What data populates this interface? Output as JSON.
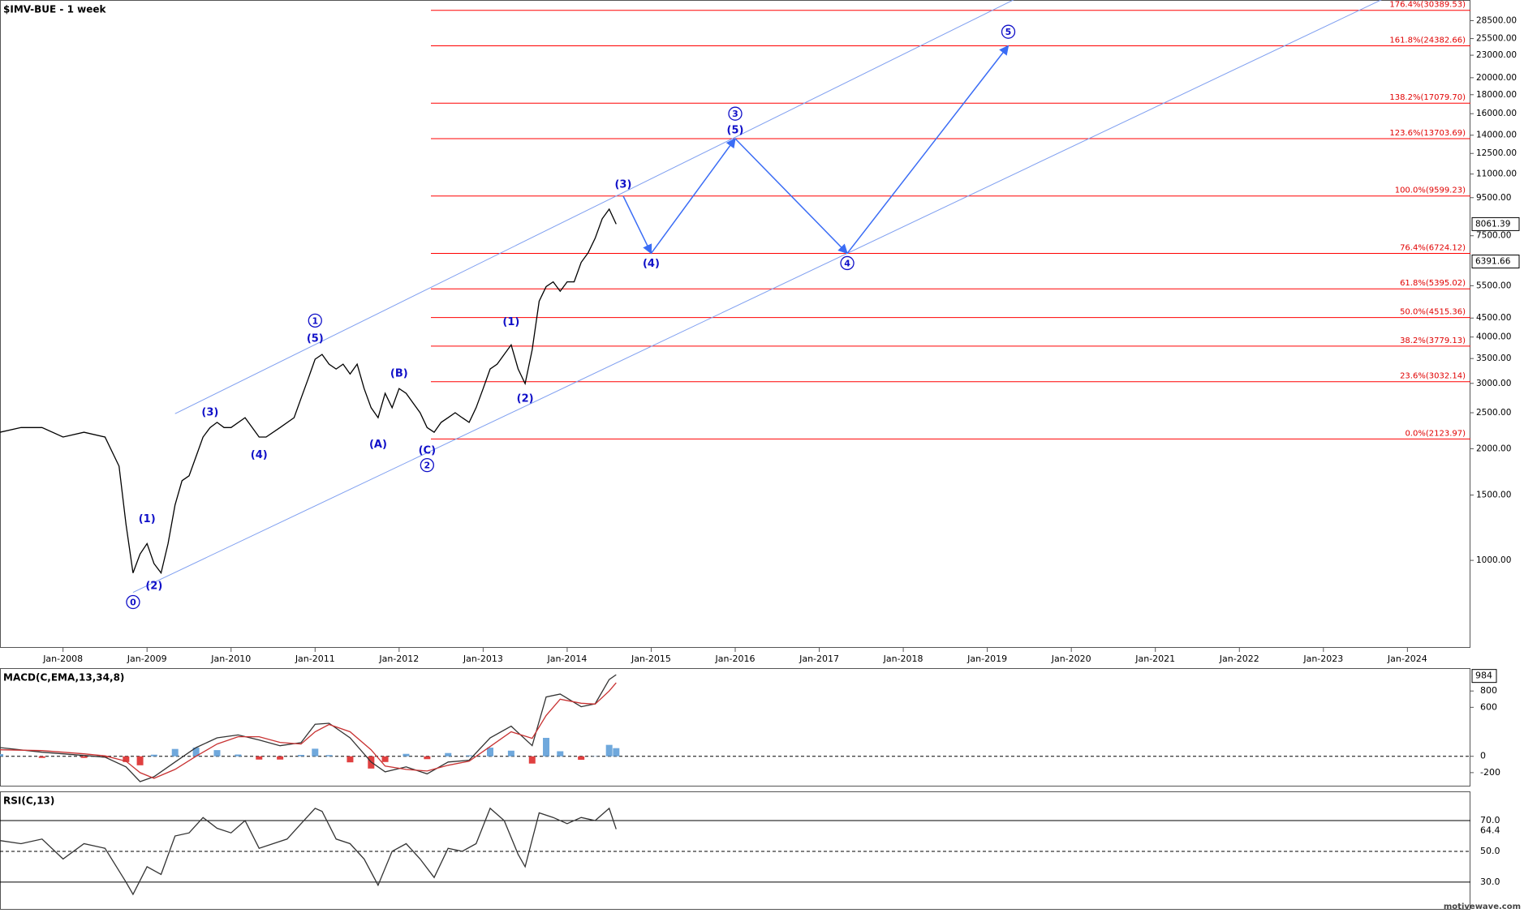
{
  "chart_data": {
    "type": "line",
    "title": "$IMV-BUE - 1 week",
    "log_scale": true,
    "color": "#000000",
    "xlim": [
      "2007-04",
      "2024-10"
    ],
    "xticks": [
      {
        "value": "2008-01",
        "label": "Jan-2008"
      },
      {
        "value": "2009-01",
        "label": "Jan-2009"
      },
      {
        "value": "2010-01",
        "label": "Jan-2010"
      },
      {
        "value": "2011-01",
        "label": "Jan-2011"
      },
      {
        "value": "2012-01",
        "label": "Jan-2012"
      },
      {
        "value": "2013-01",
        "label": "Jan-2013"
      },
      {
        "value": "2014-01",
        "label": "Jan-2014"
      },
      {
        "value": "2015-01",
        "label": "Jan-2015"
      },
      {
        "value": "2016-01",
        "label": "Jan-2016"
      },
      {
        "value": "2017-01",
        "label": "Jan-2017"
      },
      {
        "value": "2018-01",
        "label": "Jan-2018"
      },
      {
        "value": "2019-01",
        "label": "Jan-2019"
      },
      {
        "value": "2020-01",
        "label": "Jan-2020"
      },
      {
        "value": "2021-01",
        "label": "Jan-2021"
      },
      {
        "value": "2022-01",
        "label": "Jan-2022"
      },
      {
        "value": "2023-01",
        "label": "Jan-2023"
      },
      {
        "value": "2024-01",
        "label": "Jan-2024"
      }
    ],
    "ylim": [
      581,
      32400
    ],
    "yticks": [
      {
        "value": 28500,
        "label": "28500.00"
      },
      {
        "value": 25500,
        "label": "25500.00"
      },
      {
        "value": 23000,
        "label": "23000.00"
      },
      {
        "value": 20000,
        "label": "20000.00"
      },
      {
        "value": 18000,
        "label": "18000.00"
      },
      {
        "value": 16000,
        "label": "16000.00"
      },
      {
        "value": 14000,
        "label": "14000.00"
      },
      {
        "value": 12500,
        "label": "12500.00"
      },
      {
        "value": 11000,
        "label": "11000.00"
      },
      {
        "value": 9500,
        "label": "9500.00"
      },
      {
        "value": 7500,
        "label": "7500.00"
      },
      {
        "value": 5500,
        "label": "5500.00"
      },
      {
        "value": 4500,
        "label": "4500.00"
      },
      {
        "value": 4000,
        "label": "4000.00"
      },
      {
        "value": 3500,
        "label": "3500.00"
      },
      {
        "value": 3000,
        "label": "3000.00"
      },
      {
        "value": 2500,
        "label": "2500.00"
      },
      {
        "value": 2000,
        "label": "2000.00"
      },
      {
        "value": 1500,
        "label": "1500.00"
      },
      {
        "value": 1000,
        "label": "1000.00"
      }
    ],
    "x": [
      "2007-04",
      "2007-07",
      "2007-10",
      "2008-01",
      "2008-04",
      "2008-07",
      "2008-09",
      "2008-10",
      "2008-11",
      "2008-12",
      "2009-01",
      "2009-02",
      "2009-03",
      "2009-04",
      "2009-05",
      "2009-06",
      "2009-07",
      "2009-08",
      "2009-09",
      "2009-10",
      "2009-11",
      "2009-12",
      "2010-01",
      "2010-03",
      "2010-05",
      "2010-06",
      "2010-08",
      "2010-10",
      "2010-11",
      "2010-12",
      "2011-01",
      "2011-02",
      "2011-03",
      "2011-04",
      "2011-05",
      "2011-06",
      "2011-07",
      "2011-08",
      "2011-09",
      "2011-10",
      "2011-11",
      "2011-12",
      "2012-01",
      "2012-02",
      "2012-03",
      "2012-04",
      "2012-05",
      "2012-06",
      "2012-07",
      "2012-08",
      "2012-09",
      "2012-10",
      "2012-11",
      "2012-12",
      "2013-01",
      "2013-02",
      "2013-03",
      "2013-04",
      "2013-05",
      "2013-06",
      "2013-07",
      "2013-08",
      "2013-09",
      "2013-10",
      "2013-11",
      "2013-12",
      "2014-01",
      "2014-02",
      "2014-03",
      "2014-04",
      "2014-05",
      "2014-06",
      "2014-07",
      "2014-08"
    ],
    "values": [
      2215,
      2280,
      2280,
      2150,
      2215,
      2150,
      1795,
      1250,
      925,
      1040,
      1110,
      980,
      925,
      1110,
      1410,
      1640,
      1690,
      1905,
      2150,
      2280,
      2355,
      2280,
      2280,
      2425,
      2150,
      2150,
      2280,
      2425,
      2735,
      3085,
      3485,
      3590,
      3380,
      3280,
      3380,
      3180,
      3380,
      2905,
      2580,
      2425,
      2820,
      2580,
      2905,
      2820,
      2655,
      2500,
      2280,
      2215,
      2355,
      2425,
      2500,
      2425,
      2355,
      2580,
      2905,
      3280,
      3380,
      3590,
      3810,
      3280,
      2995,
      3695,
      4995,
      5470,
      5635,
      5315,
      5635,
      5635,
      6360,
      6750,
      7385,
      8335,
      8850,
      8061.39
    ],
    "price_markers": [
      8061.39,
      6391.66
    ],
    "fib_color": "#ff0000",
    "fib_levels": [
      {
        "value": 30389.53,
        "label": "176.4%(30389.53)"
      },
      {
        "value": 24382.66,
        "label": "161.8%(24382.66)"
      },
      {
        "value": 17079.7,
        "label": "138.2%(17079.70)"
      },
      {
        "value": 13703.69,
        "label": "123.6%(13703.69)"
      },
      {
        "value": 9599.23,
        "label": "100.0%(9599.23)"
      },
      {
        "value": 6724.12,
        "label": "76.4%(6724.12)"
      },
      {
        "value": 5395.02,
        "label": "61.8%(5395.02)"
      },
      {
        "value": 4515.36,
        "label": "50.0%(4515.36)"
      },
      {
        "value": 3779.13,
        "label": "38.2%(3779.13)"
      },
      {
        "value": 3032.14,
        "label": "23.6%(3032.14)"
      },
      {
        "value": 2123.97,
        "label": "0.0%(2123.97)"
      }
    ],
    "channel_color": "#7f9ff0",
    "channels": [
      {
        "x": [
          "2009-05",
          "2014-08"
        ],
        "values": [
          2485,
          9599.23
        ]
      },
      {
        "x": [
          "2008-11",
          "2017-05"
        ],
        "values": [
          820,
          6724.12
        ]
      }
    ],
    "projection_color": "#3a6cf5",
    "projection": {
      "x": [
        "2014-09",
        "2015-01",
        "2016-01",
        "2017-05",
        "2019-04"
      ],
      "values": [
        9599.23,
        6724.12,
        13703.69,
        6724.12,
        24382.66
      ]
    },
    "waves": [
      {
        "text": "0",
        "circled": true,
        "x": "2008-11",
        "y": 772
      },
      {
        "text": "(1)",
        "circled": false,
        "x": "2009-01",
        "y": 1296
      },
      {
        "text": "(2)",
        "circled": false,
        "x": "2009-02",
        "y": 855
      },
      {
        "text": "(3)",
        "circled": false,
        "x": "2009-10",
        "y": 2515
      },
      {
        "text": "(4)",
        "circled": false,
        "x": "2010-05",
        "y": 1928
      },
      {
        "text": "(5)",
        "circled": false,
        "x": "2011-01",
        "y": 3970
      },
      {
        "text": "1",
        "circled": true,
        "x": "2011-01",
        "y": 4430
      },
      {
        "text": "(A)",
        "circled": false,
        "x": "2011-10",
        "y": 2060
      },
      {
        "text": "(B)",
        "circled": false,
        "x": "2012-01",
        "y": 3200
      },
      {
        "text": "(C)",
        "circled": false,
        "x": "2012-05",
        "y": 1985
      },
      {
        "text": "2",
        "circled": true,
        "x": "2012-05",
        "y": 1806
      },
      {
        "text": "(1)",
        "circled": false,
        "x": "2013-05",
        "y": 4400
      },
      {
        "text": "(2)",
        "circled": false,
        "x": "2013-07",
        "y": 2735
      },
      {
        "text": "(3)",
        "circled": false,
        "x": "2014-09",
        "y": 10330
      },
      {
        "text": "(4)",
        "circled": false,
        "x": "2015-01",
        "y": 6330
      },
      {
        "text": "3",
        "circled": true,
        "x": "2016-01",
        "y": 16000
      },
      {
        "text": "(5)",
        "circled": false,
        "x": "2016-01",
        "y": 14500
      },
      {
        "text": "4",
        "circled": true,
        "x": "2017-05",
        "y": 6330
      },
      {
        "text": "5",
        "circled": true,
        "x": "2019-04",
        "y": 26600
      }
    ],
    "macd": {
      "title": "MACD(C,EMA,13,34,8)",
      "ylim": [
        -370,
        1080
      ],
      "yticks": [
        800,
        600,
        0,
        -200
      ],
      "marker": 984,
      "x": [
        "2007-04",
        "2007-10",
        "2008-04",
        "2008-07",
        "2008-10",
        "2008-12",
        "2009-02",
        "2009-05",
        "2009-08",
        "2009-11",
        "2010-02",
        "2010-05",
        "2010-08",
        "2010-11",
        "2011-01",
        "2011-03",
        "2011-06",
        "2011-09",
        "2011-11",
        "2012-02",
        "2012-05",
        "2012-08",
        "2012-11",
        "2013-02",
        "2013-05",
        "2013-08",
        "2013-10",
        "2013-12",
        "2014-03",
        "2014-05",
        "2014-07",
        "2014-08"
      ],
      "series": [
        {
          "color": "#333333",
          "values": [
            107,
            50,
            10,
            -10,
            -130,
            -310,
            -250,
            -70,
            107,
            226,
            262,
            200,
            130,
            167,
            393,
            405,
            226,
            -70,
            -190,
            -130,
            -215,
            -70,
            -48,
            226,
            369,
            131,
            726,
            762,
            607,
            643,
            940,
            1000
          ]
        },
        {
          "color": "#c83232",
          "values": [
            80,
            70,
            30,
            5,
            -60,
            -200,
            -270,
            -160,
            0,
            150,
            240,
            240,
            170,
            150,
            300,
            390,
            300,
            80,
            -120,
            -160,
            -180,
            -110,
            -60,
            120,
            300,
            220,
            500,
            700,
            650,
            640,
            800,
            900
          ]
        }
      ],
      "histogram": {
        "positive_color": "#6fa8dc",
        "negative_color": "#e04040",
        "values": [
          27,
          -20,
          -20,
          -15,
          -70,
          -110,
          20,
          90,
          107,
          76,
          22,
          -40,
          -40,
          17,
          93,
          15,
          -74,
          -150,
          -70,
          30,
          -35,
          40,
          12,
          106,
          69,
          -89,
          226,
          62,
          -43,
          3,
          140,
          100
        ]
      }
    },
    "rsi": {
      "title": "RSI(C,13)",
      "color": "#333333",
      "ylim": [
        12,
        89
      ],
      "yticks": [
        {
          "value": 70,
          "label": "70.0"
        },
        {
          "value": 50,
          "label": "50.0"
        },
        {
          "value": 30,
          "label": "30.0"
        }
      ],
      "marker": 64.4,
      "x": [
        "2007-04",
        "2007-07",
        "2007-10",
        "2008-01",
        "2008-04",
        "2008-07",
        "2008-10",
        "2008-11",
        "2009-01",
        "2009-03",
        "2009-05",
        "2009-07",
        "2009-09",
        "2009-11",
        "2010-01",
        "2010-03",
        "2010-05",
        "2010-07",
        "2010-09",
        "2010-11",
        "2011-01",
        "2011-02",
        "2011-04",
        "2011-06",
        "2011-08",
        "2011-10",
        "2011-12",
        "2012-02",
        "2012-04",
        "2012-06",
        "2012-08",
        "2012-10",
        "2012-12",
        "2013-02",
        "2013-04",
        "2013-06",
        "2013-07",
        "2013-09",
        "2013-11",
        "2014-01",
        "2014-03",
        "2014-05",
        "2014-07",
        "2014-08"
      ],
      "values": [
        57,
        55,
        58,
        45,
        55,
        52,
        30,
        22,
        40,
        35,
        60,
        62,
        72,
        65,
        62,
        70,
        52,
        55,
        58,
        68,
        78,
        76,
        58,
        55,
        45,
        28,
        50,
        55,
        45,
        33,
        52,
        50,
        55,
        78,
        70,
        48,
        40,
        75,
        72,
        68,
        72,
        70,
        78,
        64.4
      ]
    },
    "watermark": "motivewave.com"
  }
}
